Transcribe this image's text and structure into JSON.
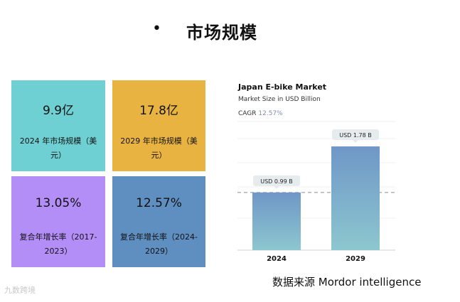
{
  "header": {
    "bullet": "•",
    "title": "市场规模"
  },
  "cards": [
    {
      "value": "9.9亿",
      "label": "2024 年市场规模（美元）",
      "color": "#6fd0d3"
    },
    {
      "value": "17.8亿",
      "label": "2029 年市场规模（美元）",
      "color": "#e8b341"
    },
    {
      "value": "13.05%",
      "label": "复合年增长率（2017-2023）",
      "color": "#b48ef7"
    },
    {
      "value": "12.57%",
      "label": "复合年增长率（2024-2029）",
      "color": "#5f8fc1"
    }
  ],
  "chart_data": {
    "type": "bar",
    "title": "Japan E-bike Market",
    "subtitle": "Market Size in USD Billion",
    "cagr_label": "CAGR",
    "cagr_value": "12.57%",
    "categories": [
      "2024",
      "2029"
    ],
    "values": [
      0.99,
      1.78
    ],
    "data_labels": [
      "USD 0.99 B",
      "USD 1.78 B"
    ],
    "ylim": [
      0,
      2.0
    ],
    "reference_line": 0.99,
    "xlabel": "",
    "ylabel": "",
    "bar_color_top": "#6f97c7",
    "bar_color_bottom": "#8cc7cf"
  },
  "source": "数据来源  Mordor intelligence",
  "watermark": "九数跨境"
}
